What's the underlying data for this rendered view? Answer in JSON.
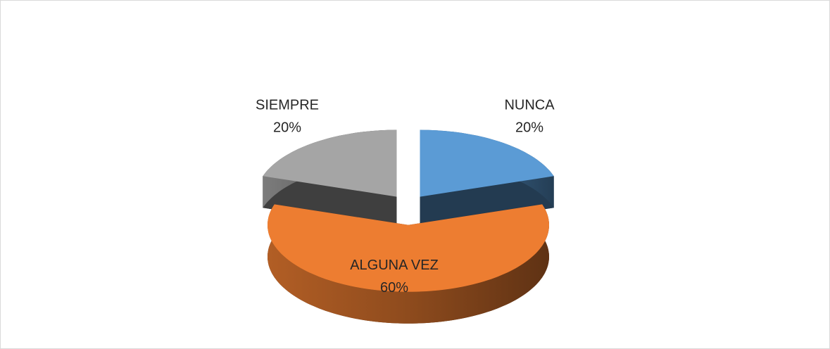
{
  "chart_data": {
    "type": "pie3d",
    "categories": [
      "NUNCA",
      "ALGUNA VEZ",
      "SIEMPRE"
    ],
    "values": [
      20,
      60,
      20
    ],
    "value_labels": [
      "20%",
      "60%",
      "20%"
    ],
    "colors": [
      "#5b9bd5",
      "#ed7d31",
      "#a5a5a5"
    ]
  }
}
